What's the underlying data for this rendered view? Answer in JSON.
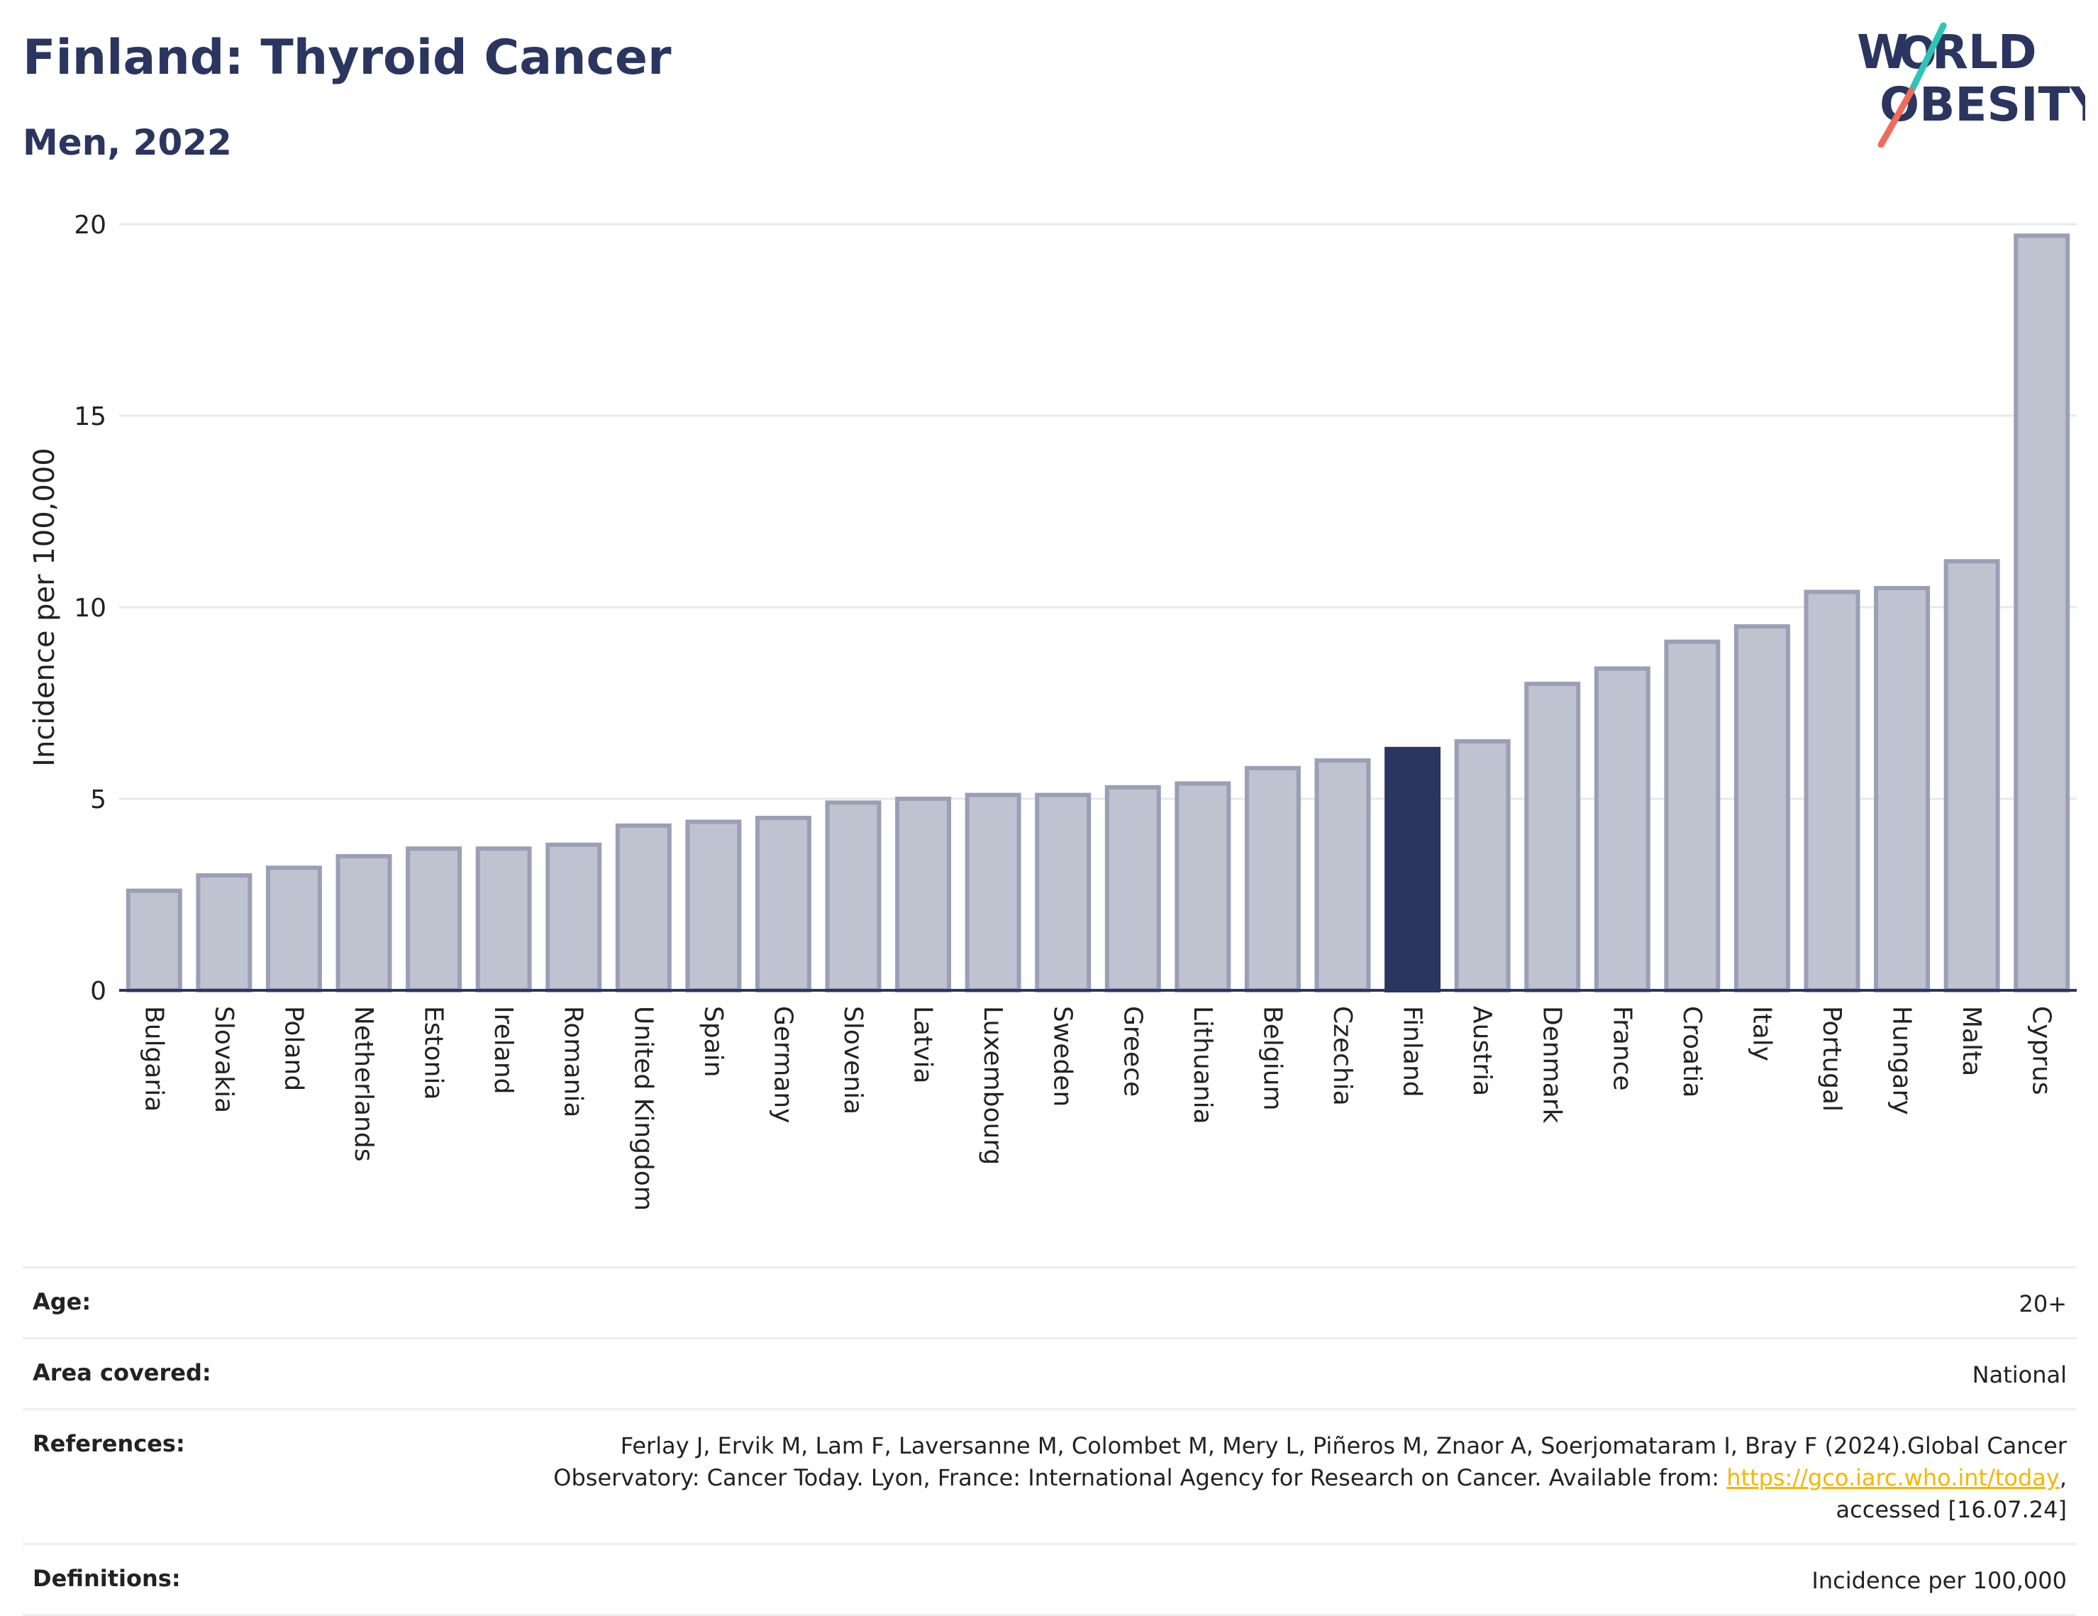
{
  "header": {
    "title": "Finland: Thyroid Cancer",
    "subtitle": "Men, 2022"
  },
  "logo": {
    "line1": "W RLD",
    "line2": "BESITY",
    "letters": "WORLD OBESITY"
  },
  "colors": {
    "bar": "#bfc2cf",
    "bar_stroke": "#9a9fb6",
    "highlight": "#2a3560",
    "logo_teal": "#2ec4b6",
    "logo_coral": "#f06b5c",
    "grid": "#e6e8ee",
    "link": "#f2b705"
  },
  "chart_data": {
    "type": "bar",
    "ylabel": "Incidence per 100,000",
    "ylim": [
      0,
      20
    ],
    "yticks": [
      0,
      5,
      10,
      15,
      20
    ],
    "grid": true,
    "highlight": "Finland",
    "categories": [
      "Bulgaria",
      "Slovakia",
      "Poland",
      "Netherlands",
      "Estonia",
      "Ireland",
      "Romania",
      "United Kingdom",
      "Spain",
      "Germany",
      "Slovenia",
      "Latvia",
      "Luxembourg",
      "Sweden",
      "Greece",
      "Lithuania",
      "Belgium",
      "Czechia",
      "Finland",
      "Austria",
      "Denmark",
      "France",
      "Croatia",
      "Italy",
      "Portugal",
      "Hungary",
      "Malta",
      "Cyprus"
    ],
    "values": [
      2.6,
      3.0,
      3.2,
      3.5,
      3.7,
      3.7,
      3.8,
      4.3,
      4.4,
      4.5,
      4.9,
      5.0,
      5.1,
      5.1,
      5.3,
      5.4,
      5.8,
      6.0,
      6.3,
      6.5,
      8.0,
      8.4,
      9.1,
      9.5,
      10.4,
      10.5,
      11.2,
      19.7
    ]
  },
  "info": {
    "age_label": "Age:",
    "age_value": "20+",
    "area_label": "Area covered:",
    "area_value": "National",
    "ref_label": "References:",
    "ref_text_1": "Ferlay J, Ervik M, Lam F, Laversanne M, Colombet M, Mery L, Piñeros M, Znaor A, Soerjomataram I, Bray F (2024).Global Cancer",
    "ref_text_2": "Observatory: Cancer Today. Lyon, France: International Agency for Research on Cancer. Available from: ",
    "ref_link": "https://gco.iarc.who.int/today",
    "ref_text_3": ",",
    "ref_text_4": "accessed [16.07.24]",
    "def_label": "Definitions:",
    "def_value": "Incidence per 100,000"
  }
}
